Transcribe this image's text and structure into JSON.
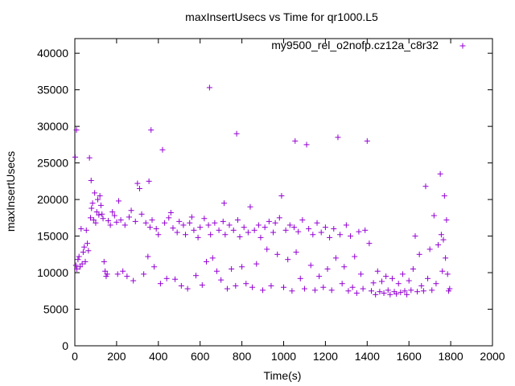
{
  "chart_data": {
    "type": "scatter",
    "title": "maxInsertUsecs vs Time for qr1000.L5",
    "xlabel": "Time(s)",
    "ylabel": "maxInsertUsecs",
    "xlim": [
      0,
      2000
    ],
    "ylim": [
      0,
      42000
    ],
    "x_ticks": [
      0,
      200,
      400,
      600,
      800,
      1000,
      1200,
      1400,
      1600,
      1800,
      2000
    ],
    "y_ticks": [
      0,
      5000,
      10000,
      15000,
      20000,
      25000,
      30000,
      35000,
      40000
    ],
    "grid": false,
    "legend_position": "top-right",
    "marker": "+",
    "series": [
      {
        "name": "my9500_rel_o2nofp.cz12a_c8r32",
        "color": "#9400D3",
        "points": [
          [
            2,
            25800
          ],
          [
            8,
            29500
          ],
          [
            5,
            11000
          ],
          [
            10,
            10500
          ],
          [
            15,
            11800
          ],
          [
            20,
            12200
          ],
          [
            25,
            10800
          ],
          [
            30,
            16000
          ],
          [
            35,
            11200
          ],
          [
            40,
            12800
          ],
          [
            45,
            13500
          ],
          [
            50,
            11500
          ],
          [
            55,
            15800
          ],
          [
            60,
            14000
          ],
          [
            65,
            13000
          ],
          [
            70,
            25700
          ],
          [
            75,
            17500
          ],
          [
            78,
            22600
          ],
          [
            80,
            18800
          ],
          [
            85,
            19500
          ],
          [
            90,
            17200
          ],
          [
            95,
            20900
          ],
          [
            100,
            16800
          ],
          [
            105,
            18300
          ],
          [
            110,
            20000
          ],
          [
            115,
            17900
          ],
          [
            120,
            20500
          ],
          [
            125,
            19200
          ],
          [
            130,
            18000
          ],
          [
            135,
            17400
          ],
          [
            140,
            11500
          ],
          [
            145,
            10200
          ],
          [
            150,
            9500
          ],
          [
            155,
            9800
          ],
          [
            160,
            17100
          ],
          [
            170,
            16500
          ],
          [
            180,
            18300
          ],
          [
            190,
            17800
          ],
          [
            200,
            16900
          ],
          [
            205,
            9800
          ],
          [
            210,
            19800
          ],
          [
            220,
            17200
          ],
          [
            230,
            10200
          ],
          [
            240,
            16500
          ],
          [
            250,
            9500
          ],
          [
            260,
            17600
          ],
          [
            270,
            18500
          ],
          [
            280,
            8900
          ],
          [
            290,
            17000
          ],
          [
            300,
            22200
          ],
          [
            310,
            21500
          ],
          [
            320,
            18000
          ],
          [
            330,
            9800
          ],
          [
            340,
            16800
          ],
          [
            350,
            12200
          ],
          [
            355,
            22500
          ],
          [
            360,
            16200
          ],
          [
            365,
            29500
          ],
          [
            370,
            17200
          ],
          [
            380,
            10800
          ],
          [
            390,
            16000
          ],
          [
            400,
            15200
          ],
          [
            410,
            8500
          ],
          [
            420,
            26800
          ],
          [
            430,
            16800
          ],
          [
            440,
            9200
          ],
          [
            450,
            17500
          ],
          [
            460,
            18200
          ],
          [
            470,
            16100
          ],
          [
            480,
            9100
          ],
          [
            490,
            15500
          ],
          [
            500,
            17000
          ],
          [
            510,
            8200
          ],
          [
            520,
            16500
          ],
          [
            530,
            15200
          ],
          [
            540,
            7800
          ],
          [
            550,
            16800
          ],
          [
            560,
            17600
          ],
          [
            570,
            15800
          ],
          [
            580,
            9600
          ],
          [
            590,
            14800
          ],
          [
            600,
            16200
          ],
          [
            610,
            8300
          ],
          [
            620,
            17400
          ],
          [
            630,
            11500
          ],
          [
            640,
            16500
          ],
          [
            645,
            35300
          ],
          [
            650,
            15200
          ],
          [
            660,
            12000
          ],
          [
            670,
            16800
          ],
          [
            680,
            10200
          ],
          [
            690,
            15800
          ],
          [
            700,
            9000
          ],
          [
            710,
            17000
          ],
          [
            715,
            19500
          ],
          [
            720,
            15200
          ],
          [
            730,
            7800
          ],
          [
            740,
            16500
          ],
          [
            750,
            10500
          ],
          [
            760,
            15800
          ],
          [
            770,
            8200
          ],
          [
            775,
            29000
          ],
          [
            780,
            17200
          ],
          [
            790,
            14900
          ],
          [
            800,
            10800
          ],
          [
            810,
            16200
          ],
          [
            820,
            8500
          ],
          [
            830,
            15500
          ],
          [
            840,
            19000
          ],
          [
            850,
            8000
          ],
          [
            860,
            15800
          ],
          [
            870,
            11200
          ],
          [
            880,
            16500
          ],
          [
            890,
            14800
          ],
          [
            900,
            7600
          ],
          [
            910,
            16200
          ],
          [
            920,
            13200
          ],
          [
            930,
            17000
          ],
          [
            940,
            8200
          ],
          [
            950,
            15500
          ],
          [
            960,
            16800
          ],
          [
            970,
            12500
          ],
          [
            980,
            17500
          ],
          [
            990,
            20500
          ],
          [
            1000,
            8000
          ],
          [
            1010,
            15800
          ],
          [
            1020,
            11800
          ],
          [
            1030,
            16500
          ],
          [
            1040,
            7500
          ],
          [
            1050,
            16200
          ],
          [
            1055,
            28000
          ],
          [
            1060,
            12800
          ],
          [
            1070,
            15600
          ],
          [
            1080,
            9200
          ],
          [
            1090,
            17200
          ],
          [
            1100,
            7800
          ],
          [
            1110,
            27500
          ],
          [
            1120,
            16000
          ],
          [
            1130,
            11000
          ],
          [
            1140,
            15200
          ],
          [
            1150,
            7600
          ],
          [
            1160,
            16800
          ],
          [
            1170,
            9500
          ],
          [
            1180,
            15500
          ],
          [
            1190,
            8000
          ],
          [
            1200,
            16200
          ],
          [
            1210,
            10500
          ],
          [
            1220,
            14800
          ],
          [
            1230,
            7600
          ],
          [
            1240,
            16000
          ],
          [
            1250,
            12000
          ],
          [
            1260,
            28500
          ],
          [
            1270,
            15200
          ],
          [
            1280,
            8500
          ],
          [
            1290,
            10800
          ],
          [
            1300,
            16500
          ],
          [
            1310,
            7500
          ],
          [
            1320,
            15000
          ],
          [
            1330,
            8000
          ],
          [
            1340,
            12200
          ],
          [
            1350,
            7200
          ],
          [
            1360,
            15600
          ],
          [
            1370,
            9800
          ],
          [
            1380,
            7800
          ],
          [
            1390,
            15800
          ],
          [
            1400,
            28000
          ],
          [
            1410,
            14000
          ],
          [
            1420,
            7500
          ],
          [
            1430,
            8600
          ],
          [
            1440,
            7000
          ],
          [
            1450,
            10200
          ],
          [
            1460,
            7400
          ],
          [
            1470,
            8800
          ],
          [
            1480,
            7200
          ],
          [
            1490,
            9500
          ],
          [
            1500,
            7600
          ],
          [
            1510,
            7000
          ],
          [
            1520,
            9200
          ],
          [
            1530,
            7400
          ],
          [
            1540,
            7100
          ],
          [
            1550,
            8500
          ],
          [
            1560,
            7300
          ],
          [
            1570,
            9800
          ],
          [
            1580,
            7500
          ],
          [
            1590,
            7000
          ],
          [
            1600,
            8900
          ],
          [
            1610,
            7600
          ],
          [
            1620,
            10500
          ],
          [
            1630,
            15000
          ],
          [
            1640,
            7400
          ],
          [
            1650,
            12500
          ],
          [
            1660,
            8200
          ],
          [
            1670,
            7500
          ],
          [
            1680,
            21800
          ],
          [
            1690,
            9200
          ],
          [
            1700,
            13200
          ],
          [
            1710,
            7600
          ],
          [
            1720,
            17800
          ],
          [
            1730,
            8500
          ],
          [
            1740,
            13800
          ],
          [
            1750,
            23500
          ],
          [
            1755,
            15200
          ],
          [
            1760,
            10200
          ],
          [
            1765,
            14500
          ],
          [
            1770,
            20500
          ],
          [
            1775,
            12000
          ],
          [
            1780,
            17200
          ],
          [
            1785,
            9800
          ],
          [
            1790,
            7500
          ],
          [
            1795,
            7800
          ]
        ]
      }
    ]
  }
}
